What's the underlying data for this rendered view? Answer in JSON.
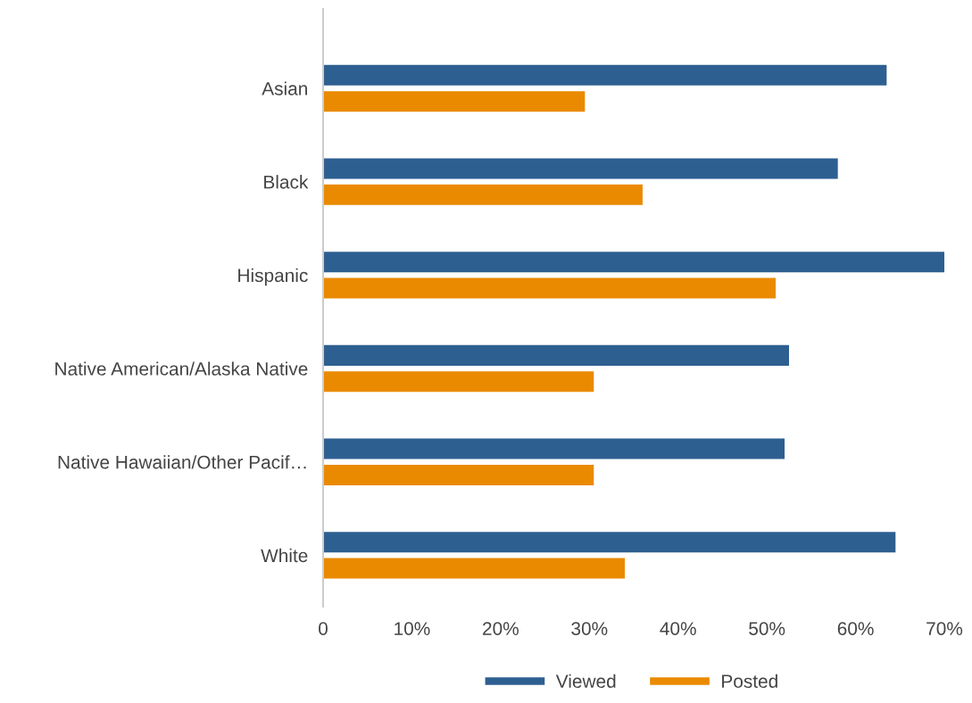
{
  "chart_data": {
    "type": "bar",
    "orientation": "horizontal",
    "categories": [
      "Asian",
      "Black",
      "Hispanic",
      "Native American/Alaska Native",
      "Native Hawaiian/Other Pacif…",
      "White"
    ],
    "series": [
      {
        "name": "Viewed",
        "color": "#2e5f91",
        "values": [
          63.5,
          58,
          70,
          52.5,
          52,
          64.5
        ]
      },
      {
        "name": "Posted",
        "color": "#ea8a00",
        "values": [
          29.5,
          36,
          51,
          30.5,
          30.5,
          34
        ]
      }
    ],
    "xlim": [
      0,
      70
    ],
    "xticks": [
      0,
      {
        "value": 10,
        "label": "10%"
      },
      {
        "value": 20,
        "label": "20%"
      },
      {
        "value": 30,
        "label": "30%"
      },
      {
        "value": 40,
        "label": "40%"
      },
      {
        "value": 50,
        "label": "50%"
      },
      {
        "value": 60,
        "label": "60%"
      },
      {
        "value": 70,
        "label": "70%"
      }
    ],
    "grid": false,
    "legend": "bottom"
  }
}
